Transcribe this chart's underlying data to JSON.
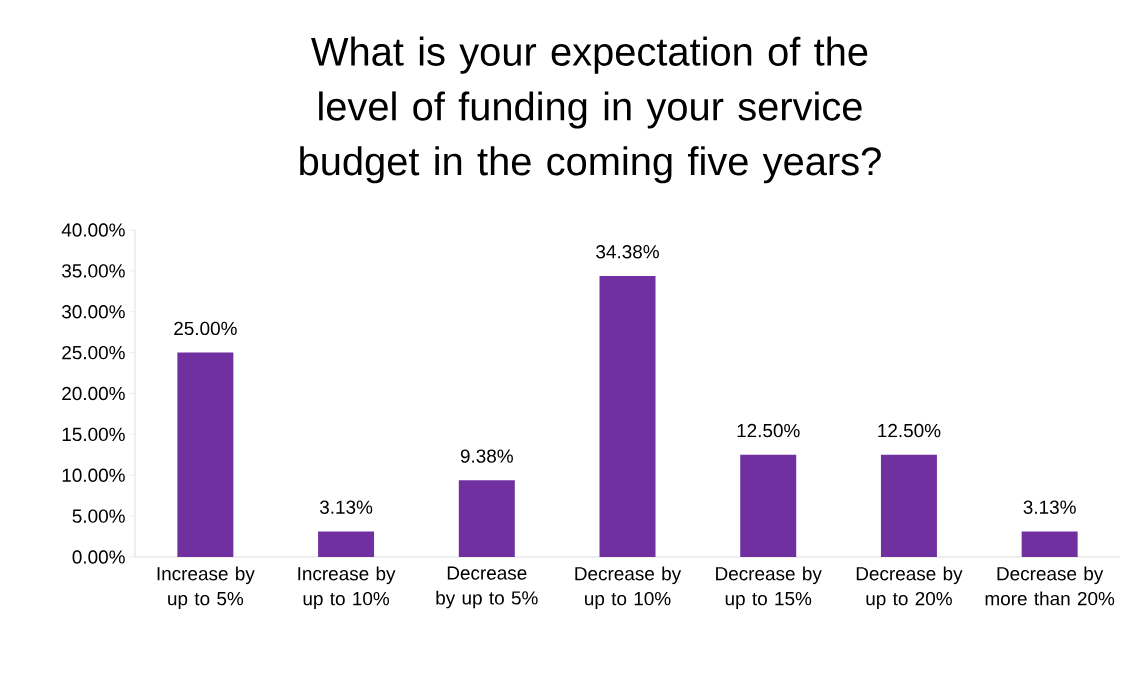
{
  "chart_data": {
    "type": "bar",
    "title": "What is your expectation of the level of funding in your service budget in the coming five years?",
    "categories": [
      "Increase by up to 5%",
      "Increase by up to 10%",
      "Decrease by up to 5%",
      "Decrease by up to 10%",
      "Decrease by up to 15%",
      "Decrease by up to 20%",
      "Decrease by more than 20%"
    ],
    "values": [
      25.0,
      3.13,
      9.38,
      34.38,
      12.5,
      12.5,
      3.13
    ],
    "value_labels": [
      "25.00%",
      "3.13%",
      "9.38%",
      "34.38%",
      "12.50%",
      "12.50%",
      "3.13%"
    ],
    "color": "#7030a0",
    "ylim": [
      0,
      40
    ],
    "yticks": [
      {
        "value": 0,
        "label": "0.00%"
      },
      {
        "value": 5,
        "label": "5.00%"
      },
      {
        "value": 10,
        "label": "10.00%"
      },
      {
        "value": 15,
        "label": "15.00%"
      },
      {
        "value": 20,
        "label": "20.00%"
      },
      {
        "value": 25,
        "label": "25.00%"
      },
      {
        "value": 30,
        "label": "30.00%"
      },
      {
        "value": 35,
        "label": "35.00%"
      },
      {
        "value": 40,
        "label": "40.00%"
      }
    ],
    "grid": false
  }
}
